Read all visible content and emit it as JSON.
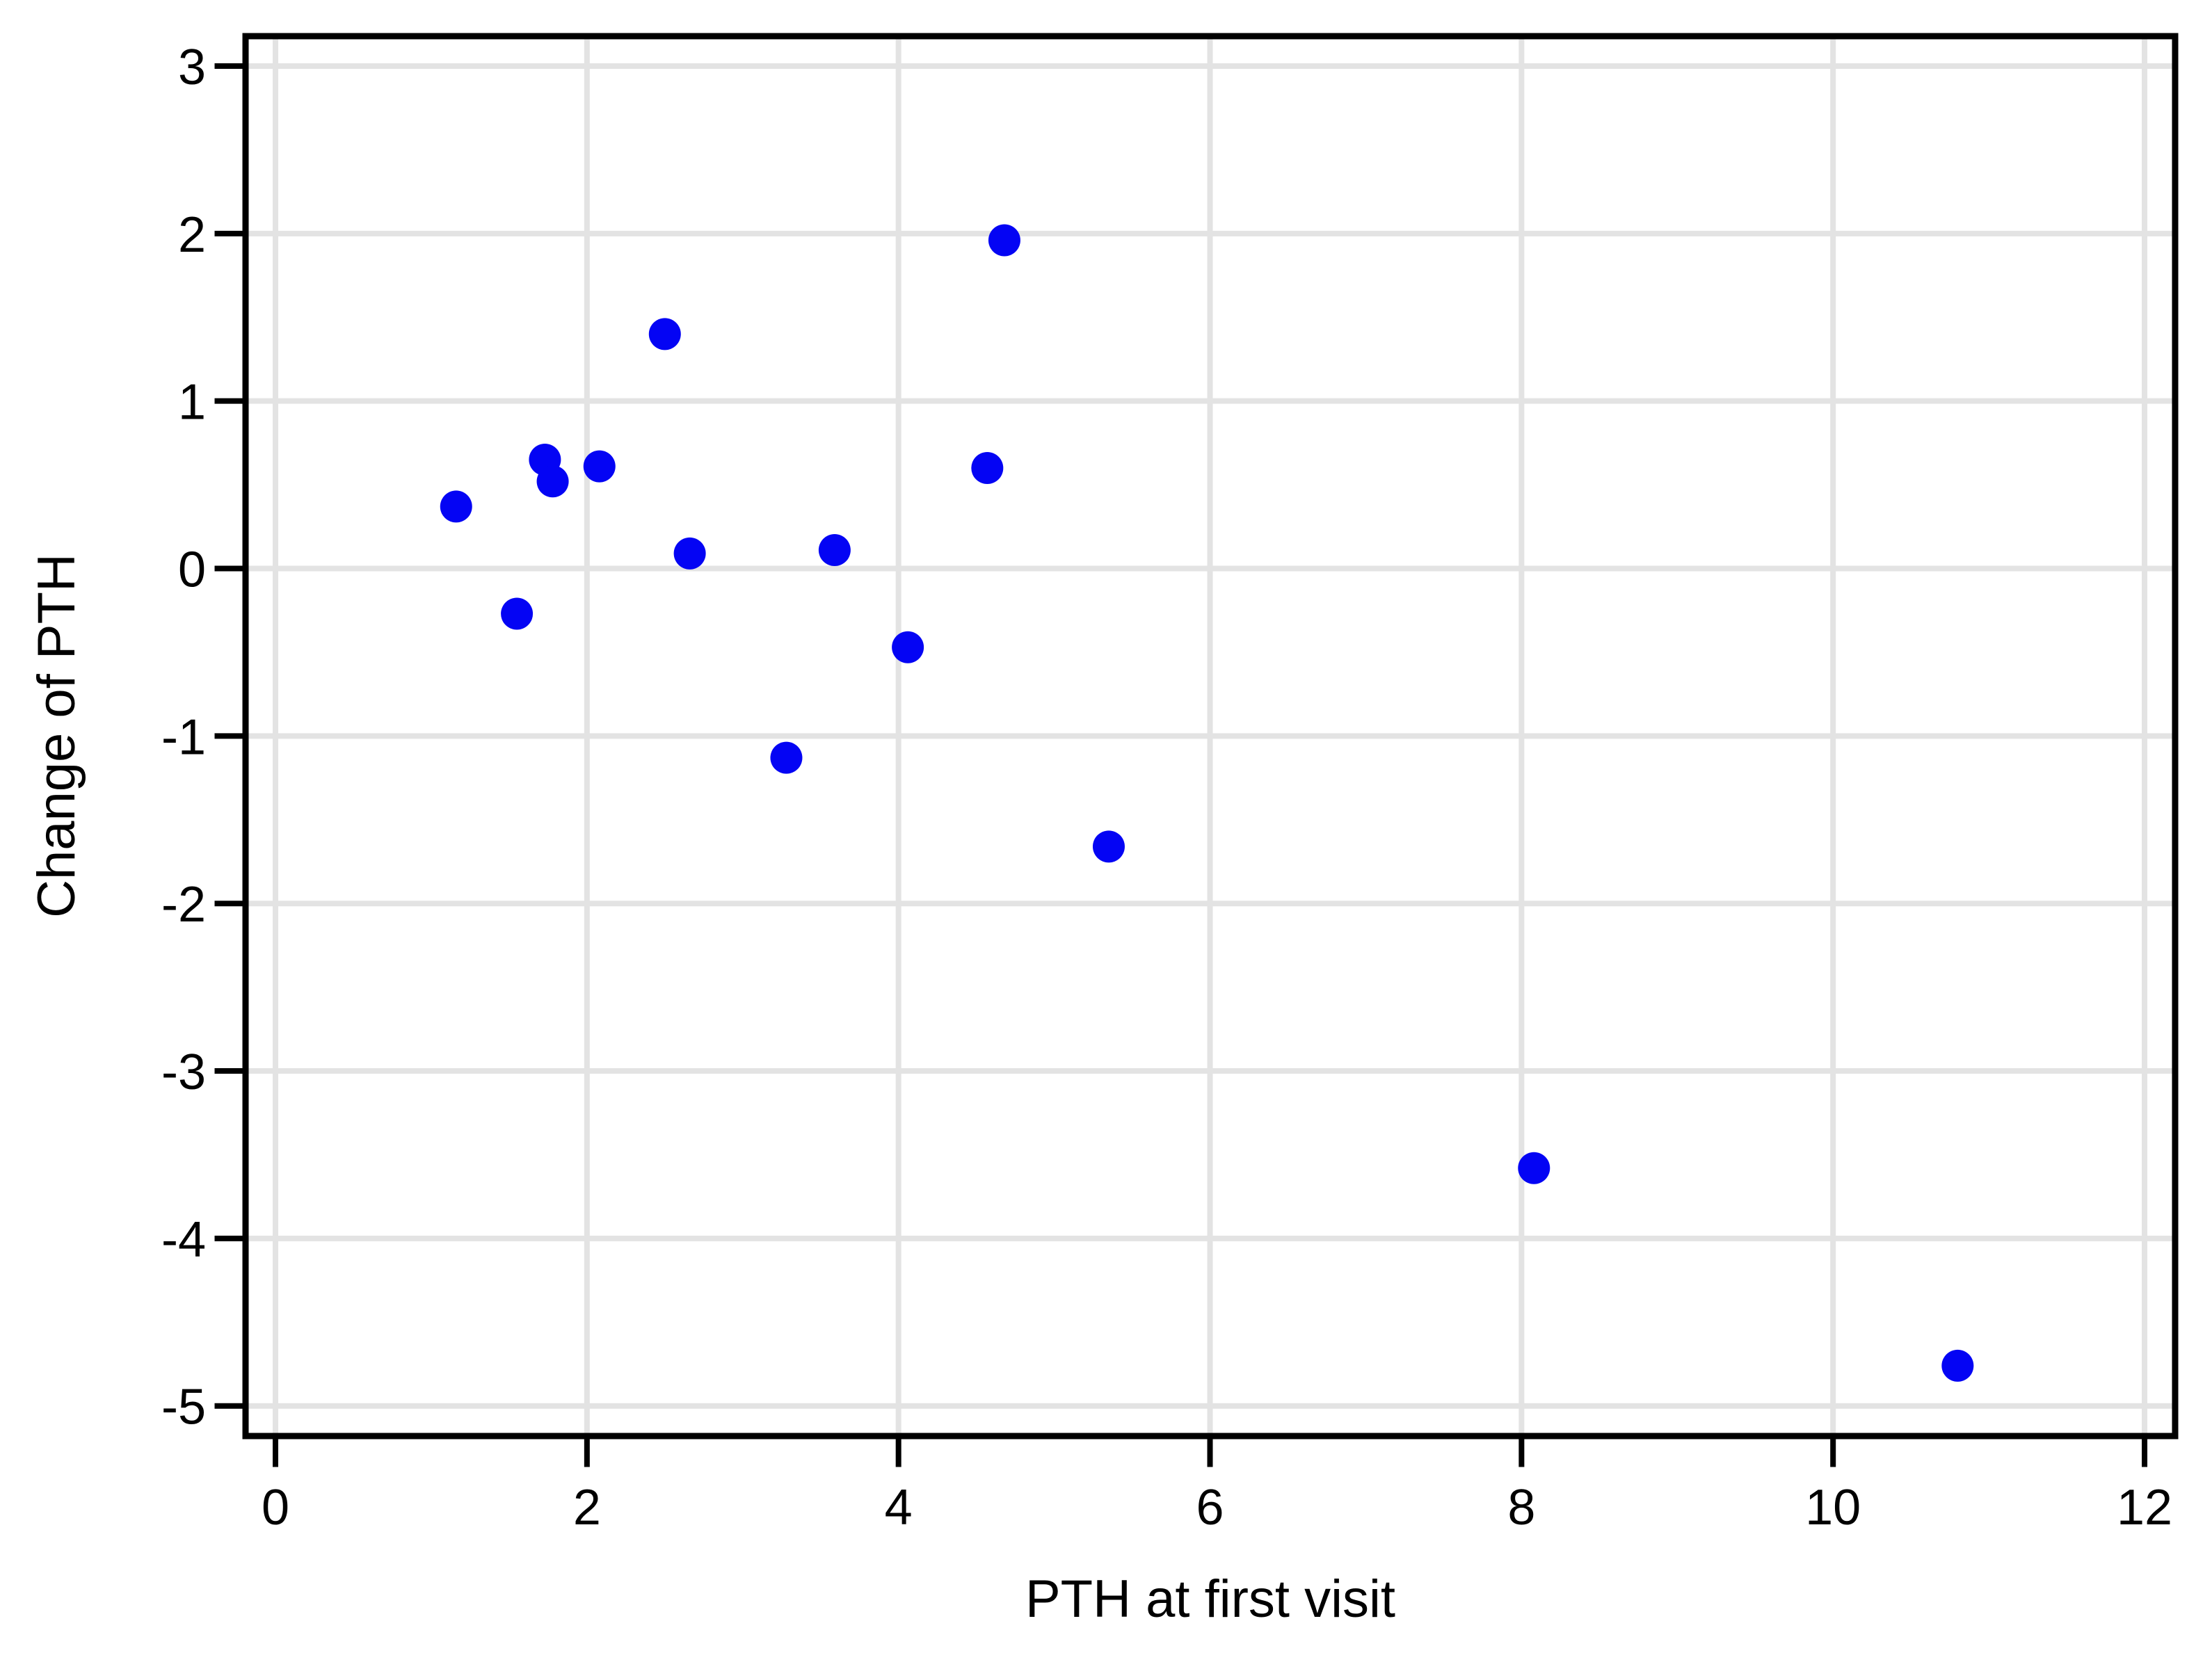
{
  "chart_data": {
    "type": "scatter",
    "title": "",
    "xlabel": "PTH at first visit",
    "ylabel": "Change of PTH",
    "x_ticks": [
      0,
      2,
      4,
      6,
      8,
      10,
      12
    ],
    "y_ticks": [
      3,
      2,
      1,
      0,
      -1,
      -2,
      -3,
      -4,
      -5
    ],
    "xlim": [
      -0.19,
      12.2
    ],
    "ylim": [
      -5.18,
      3.18
    ],
    "grid": true,
    "legend": "none",
    "marker_color": "#0404F4",
    "grid_color": "#E3E3E3",
    "frame_color": "#000000",
    "points": [
      {
        "x": 1.16,
        "y": 0.37
      },
      {
        "x": 1.55,
        "y": -0.27
      },
      {
        "x": 1.73,
        "y": 0.65
      },
      {
        "x": 1.78,
        "y": 0.52
      },
      {
        "x": 2.08,
        "y": 0.61
      },
      {
        "x": 2.5,
        "y": 1.4
      },
      {
        "x": 2.66,
        "y": 0.09
      },
      {
        "x": 3.28,
        "y": -1.13
      },
      {
        "x": 3.59,
        "y": 0.11
      },
      {
        "x": 4.06,
        "y": -0.47
      },
      {
        "x": 4.57,
        "y": 0.6
      },
      {
        "x": 4.68,
        "y": 1.96
      },
      {
        "x": 5.35,
        "y": -1.66
      },
      {
        "x": 8.08,
        "y": -3.58
      },
      {
        "x": 10.8,
        "y": -4.76
      }
    ]
  }
}
